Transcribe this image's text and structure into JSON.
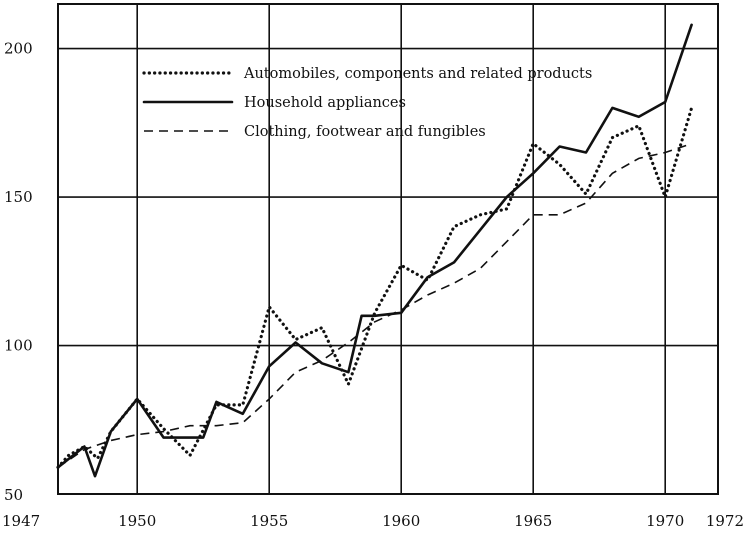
{
  "chart_data": {
    "type": "line",
    "title": "",
    "xlabel": "",
    "ylabel": "",
    "xlim": [
      1947,
      1972
    ],
    "ylim": [
      50,
      215
    ],
    "grid": true,
    "legend_position": "top-left",
    "x_ticks": [
      {
        "value": 1947,
        "label": "1947"
      },
      {
        "value": 1950,
        "label": "1950"
      },
      {
        "value": 1955,
        "label": "1955"
      },
      {
        "value": 1960,
        "label": "1960"
      },
      {
        "value": 1965,
        "label": "1965"
      },
      {
        "value": 1970,
        "label": "1970"
      },
      {
        "value": 1972,
        "label": "1972"
      }
    ],
    "x_grid": [
      1950,
      1955,
      1960,
      1965,
      1970
    ],
    "y_ticks": [
      {
        "value": 50,
        "label": "50"
      },
      {
        "value": 100,
        "label": "100"
      },
      {
        "value": 150,
        "label": "150"
      },
      {
        "value": 200,
        "label": "200"
      }
    ],
    "y_grid": [
      100,
      150,
      200
    ],
    "series": [
      {
        "name": "Automobiles, components and related products",
        "style": "dotted",
        "points": [
          [
            1947,
            59
          ],
          [
            1947.4,
            63
          ],
          [
            1948,
            66
          ],
          [
            1948.5,
            62
          ],
          [
            1949,
            71
          ],
          [
            1950,
            82
          ],
          [
            1951,
            72
          ],
          [
            1952,
            63
          ],
          [
            1953,
            80
          ],
          [
            1954,
            80
          ],
          [
            1955,
            113
          ],
          [
            1956,
            102
          ],
          [
            1957,
            106
          ],
          [
            1958,
            87
          ],
          [
            1959,
            111
          ],
          [
            1960,
            127
          ],
          [
            1961,
            122
          ],
          [
            1962,
            140
          ],
          [
            1963,
            144
          ],
          [
            1964,
            146
          ],
          [
            1965,
            168
          ],
          [
            1966,
            161
          ],
          [
            1967,
            151
          ],
          [
            1968,
            170
          ],
          [
            1969,
            174
          ],
          [
            1970,
            150
          ],
          [
            1971,
            180
          ]
        ]
      },
      {
        "name": "Household appliances",
        "style": "solid",
        "points": [
          [
            1947,
            59
          ],
          [
            1948,
            66
          ],
          [
            1948.4,
            56
          ],
          [
            1949,
            71
          ],
          [
            1950,
            82
          ],
          [
            1951,
            69
          ],
          [
            1952,
            69
          ],
          [
            1952.5,
            69
          ],
          [
            1953,
            81
          ],
          [
            1954,
            77
          ],
          [
            1955,
            93
          ],
          [
            1956,
            101
          ],
          [
            1957,
            94
          ],
          [
            1958,
            91
          ],
          [
            1958.5,
            110
          ],
          [
            1959,
            110
          ],
          [
            1960,
            111
          ],
          [
            1961,
            123
          ],
          [
            1962,
            128
          ],
          [
            1963,
            139
          ],
          [
            1964,
            150
          ],
          [
            1965,
            158
          ],
          [
            1966,
            167
          ],
          [
            1967,
            165
          ],
          [
            1968,
            180
          ],
          [
            1969,
            177
          ],
          [
            1970,
            182
          ],
          [
            1971,
            208
          ]
        ]
      },
      {
        "name": "Clothing, footwear and fungibles",
        "style": "dashed",
        "points": [
          [
            1947,
            59
          ],
          [
            1948,
            65
          ],
          [
            1949,
            68
          ],
          [
            1950,
            70
          ],
          [
            1951,
            71
          ],
          [
            1952,
            73
          ],
          [
            1953,
            73
          ],
          [
            1954,
            74
          ],
          [
            1955,
            82
          ],
          [
            1956,
            91
          ],
          [
            1957,
            95
          ],
          [
            1958,
            101
          ],
          [
            1959,
            108
          ],
          [
            1960,
            112
          ],
          [
            1961,
            117
          ],
          [
            1962,
            121
          ],
          [
            1963,
            126
          ],
          [
            1964,
            135
          ],
          [
            1965,
            144
          ],
          [
            1966,
            144
          ],
          [
            1967,
            148
          ],
          [
            1968,
            158
          ],
          [
            1969,
            163
          ],
          [
            1970,
            165
          ],
          [
            1971,
            168
          ]
        ]
      }
    ]
  }
}
